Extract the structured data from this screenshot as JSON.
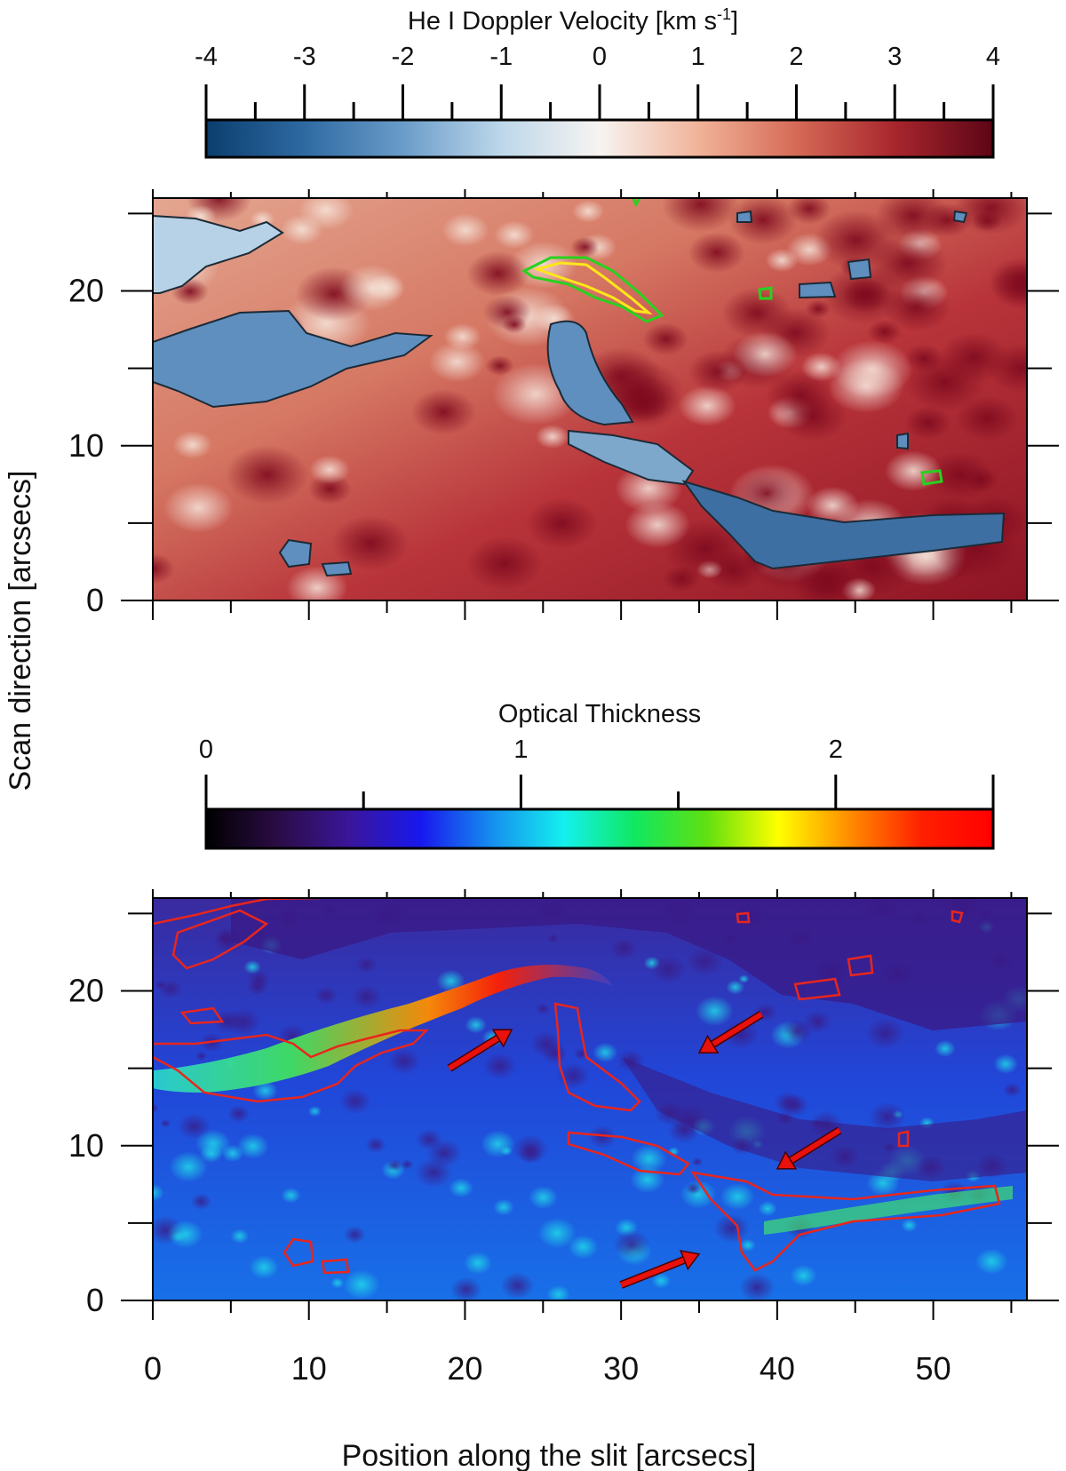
{
  "chart_data": [
    {
      "type": "heatmap",
      "colorbar": {
        "title": "He I Doppler Velocity [km s",
        "title_superscript": "-1",
        "title_close": "]",
        "range": [
          -4,
          4
        ],
        "tick_labels": [
          "-4",
          "-3",
          "-2",
          "-1",
          "0",
          "1",
          "2",
          "3",
          "4"
        ],
        "minor_ticks": [
          -3.5,
          -2.5,
          -1.5,
          -0.5,
          0.5,
          1.5,
          2.5,
          3.5
        ],
        "colors": [
          "#0b3e6e",
          "#2e6aa2",
          "#6a9cc9",
          "#bdd7ea",
          "#f7f4f1",
          "#f1b399",
          "#d56a56",
          "#a8262d",
          "#5c0516"
        ]
      },
      "xlim": [
        0,
        56
      ],
      "ylim": [
        0,
        26
      ],
      "y_tick_labels": [
        "0",
        "10",
        "20"
      ],
      "contours": [
        {
          "name": "negative-velocity",
          "color": "#1b2a36"
        },
        {
          "name": "high-value",
          "color": "#27d21f"
        },
        {
          "name": "high-value-core",
          "color": "#ffe619"
        }
      ]
    },
    {
      "type": "heatmap",
      "colorbar": {
        "title": "Optical Thickness",
        "range": [
          0,
          2.5
        ],
        "tick_labels": [
          "0",
          "1",
          "2"
        ],
        "minor_ticks": [
          0.5,
          1.5
        ],
        "colors": [
          "#000000",
          "#2b0c45",
          "#3a169a",
          "#1818ee",
          "#1690ee",
          "#14f0ee",
          "#10e860",
          "#60e010",
          "#ffff00",
          "#ff8c00",
          "#ff2000",
          "#ff0000"
        ]
      },
      "xlim": [
        0,
        56
      ],
      "ylim": [
        0,
        26
      ],
      "x_tick_labels": [
        "0",
        "10",
        "20",
        "30",
        "40",
        "50"
      ],
      "y_tick_labels": [
        "0",
        "10",
        "20"
      ],
      "xlabel": "Position along the slit [arcsecs]",
      "arrows": [
        {
          "from": [
            19,
            15
          ],
          "to": [
            23,
            17.5
          ]
        },
        {
          "from": [
            39,
            18.5
          ],
          "to": [
            35,
            16
          ]
        },
        {
          "from": [
            44,
            11
          ],
          "to": [
            40,
            8.5
          ]
        },
        {
          "from": [
            30,
            1
          ],
          "to": [
            35,
            3
          ]
        }
      ],
      "arrow_color": "#e8110c",
      "contour_color": "#e8261c"
    }
  ],
  "ylabel": "Scan direction [arcsecs]"
}
